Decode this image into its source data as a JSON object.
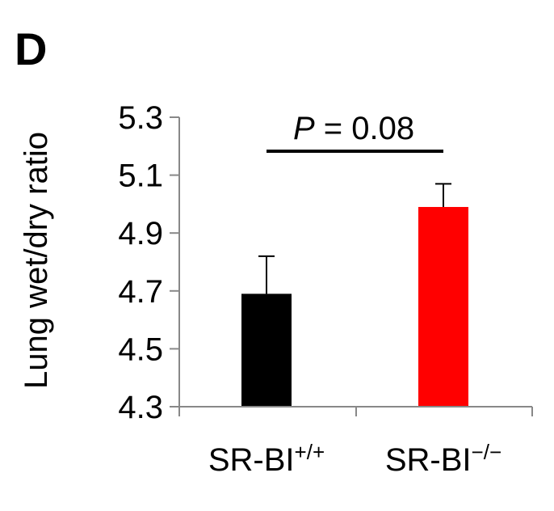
{
  "panel_label": "D",
  "chart_data": {
    "type": "bar",
    "title": "",
    "xlabel": "",
    "ylabel": "Lung wet/dry ratio",
    "ylim": [
      4.3,
      5.3
    ],
    "yticks": [
      "4.3",
      "4.5",
      "4.7",
      "4.9",
      "5.1",
      "5.3"
    ],
    "grid": false,
    "categories": [
      {
        "base": "SR-BI",
        "sup": "+/+"
      },
      {
        "base": "SR-BI",
        "sup": "−/−"
      }
    ],
    "values": [
      4.69,
      4.99
    ],
    "error_upper": [
      4.82,
      5.07
    ],
    "bar_colors": [
      "#000000",
      "#ff0000"
    ],
    "annotation": {
      "italic": "P",
      "rest": " = 0.08"
    }
  }
}
